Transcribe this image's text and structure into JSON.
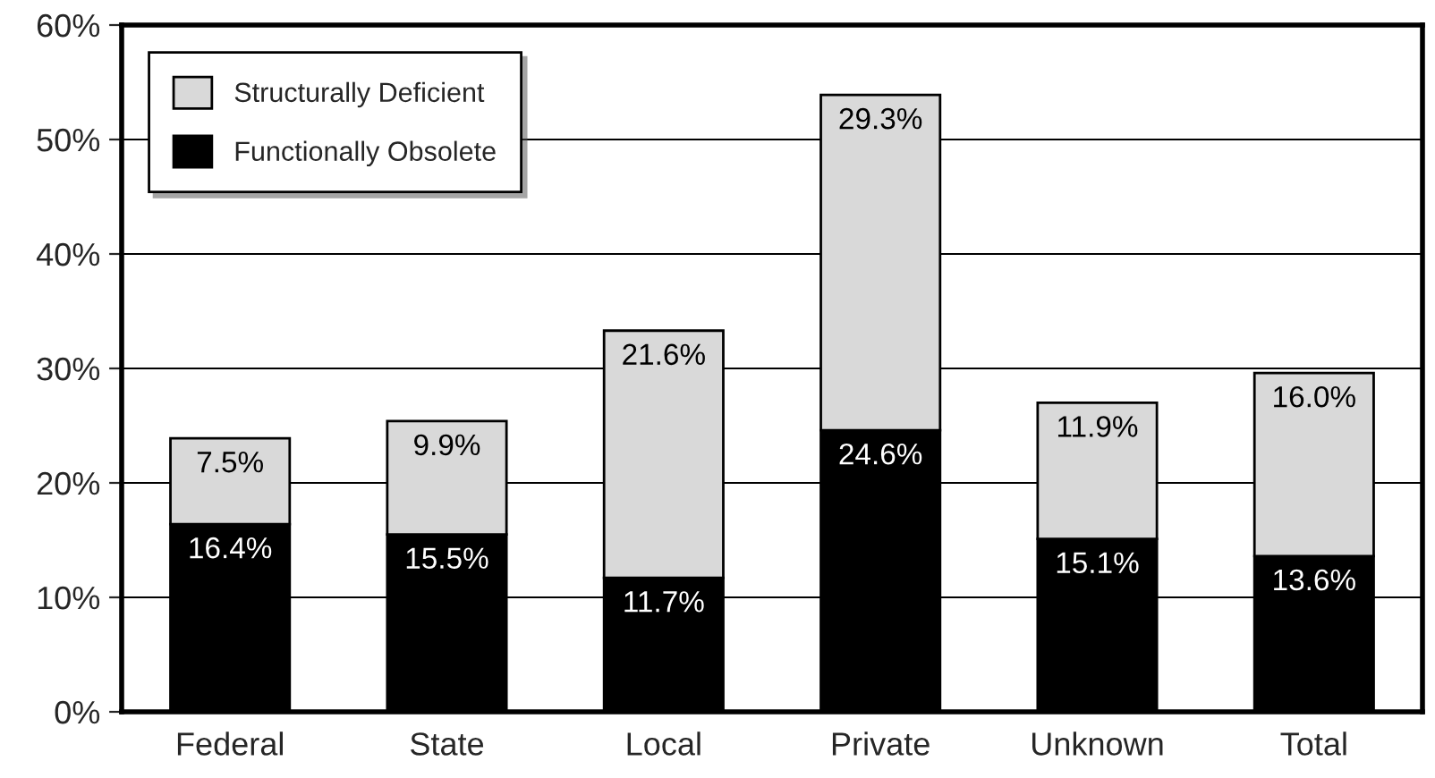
{
  "chart_data": {
    "type": "bar",
    "stacked": true,
    "categories": [
      "Federal",
      "State",
      "Local",
      "Private",
      "Unknown",
      "Total"
    ],
    "series": [
      {
        "name": "Functionally Obsolete",
        "color": "#000000",
        "values": [
          16.4,
          15.5,
          11.7,
          24.6,
          15.1,
          13.6
        ],
        "value_labels": [
          "16.4%",
          "15.5%",
          "11.7%",
          "24.6%",
          "15.1%",
          "13.6%"
        ]
      },
      {
        "name": "Structurally Deficient",
        "color": "#d9d9d9",
        "values": [
          7.5,
          9.9,
          21.6,
          29.3,
          11.9,
          16.0
        ],
        "value_labels": [
          "7.5%",
          "9.9%",
          "21.6%",
          "29.3%",
          "11.9%",
          "16.0%"
        ]
      }
    ],
    "ylim": [
      0,
      60
    ],
    "yticks": [
      {
        "value": 0,
        "label": "0%"
      },
      {
        "value": 10,
        "label": "10%"
      },
      {
        "value": 20,
        "label": "20%"
      },
      {
        "value": 30,
        "label": "30%"
      },
      {
        "value": 40,
        "label": "40%"
      },
      {
        "value": 50,
        "label": "50%"
      },
      {
        "value": 60,
        "label": "60%"
      }
    ],
    "grid": "y",
    "legend": "top left"
  }
}
